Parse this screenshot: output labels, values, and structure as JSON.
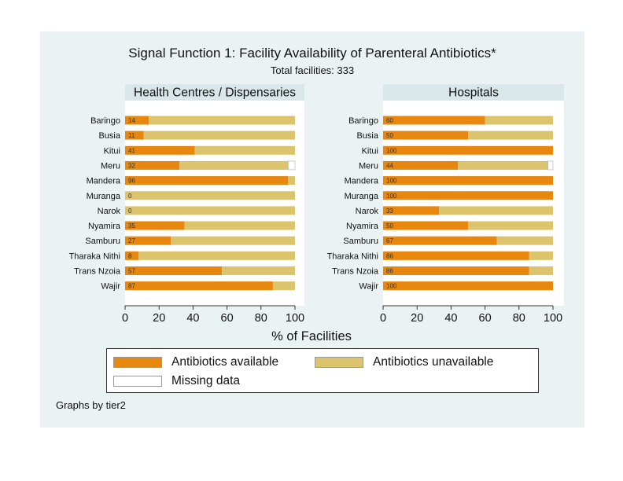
{
  "chart_data": {
    "type": "bar",
    "orientation": "horizontal",
    "stacked": true,
    "title": "Signal Function 1: Facility Availability of Parenteral Antibiotics*",
    "subtitle": "Total facilities: 333",
    "xlabel": "% of Facilities",
    "xlim": [
      0,
      100
    ],
    "xticks": [
      "0",
      "20",
      "40",
      "60",
      "80",
      "100"
    ],
    "note": "Graphs by tier2",
    "colors": {
      "available": "#e8870e",
      "unavailable": "#dcc46c",
      "missing": "#ffffff",
      "panel_header": "#d9e6ea",
      "background": "#eaf2f3"
    },
    "legend": [
      {
        "key": "available",
        "label": "Antibiotics available"
      },
      {
        "key": "unavailable",
        "label": "Antibiotics unavailable"
      },
      {
        "key": "missing",
        "label": "Missing data"
      }
    ],
    "panels": [
      {
        "title": "Health Centres / Dispensaries",
        "categories": [
          "Baringo",
          "Busia",
          "Kitui",
          "Meru",
          "Mandera",
          "Muranga",
          "Narok",
          "Nyamira",
          "Samburu",
          "Tharaka Nithi",
          "Trans Nzoia",
          "Wajir"
        ],
        "series": [
          {
            "name": "Antibiotics available",
            "values": [
              14,
              11,
              41,
              32,
              96,
              0,
              0,
              35,
              27,
              8,
              57,
              87
            ]
          },
          {
            "name": "Antibiotics unavailable",
            "values": [
              86,
              89,
              59,
              64,
              4,
              100,
              100,
              65,
              73,
              92,
              43,
              13
            ]
          },
          {
            "name": "Missing data",
            "values": [
              0,
              0,
              0,
              4,
              0,
              0,
              0,
              0,
              0,
              0,
              0,
              0
            ]
          }
        ],
        "labels": [
          "14",
          "11",
          "41",
          "32",
          "96",
          "0",
          "0",
          "35",
          "27",
          "8",
          "57",
          "87"
        ]
      },
      {
        "title": "Hospitals",
        "categories": [
          "Baringo",
          "Busia",
          "Kitui",
          "Meru",
          "Mandera",
          "Muranga",
          "Narok",
          "Nyamira",
          "Samburu",
          "Tharaka Nithi",
          "Trans Nzoia",
          "Wajir"
        ],
        "series": [
          {
            "name": "Antibiotics available",
            "values": [
              60,
              50,
              100,
              44,
              100,
              100,
              33,
              50,
              67,
              86,
              86,
              100
            ]
          },
          {
            "name": "Antibiotics unavailable",
            "values": [
              40,
              50,
              0,
              53,
              0,
              0,
              67,
              50,
              33,
              14,
              14,
              0
            ]
          },
          {
            "name": "Missing data",
            "values": [
              0,
              0,
              0,
              3,
              0,
              0,
              0,
              0,
              0,
              0,
              0,
              0
            ]
          }
        ],
        "labels": [
          "60",
          "50",
          "100",
          "44",
          "100",
          "100",
          "33",
          "50",
          "67",
          "86",
          "86",
          "100"
        ]
      }
    ]
  }
}
